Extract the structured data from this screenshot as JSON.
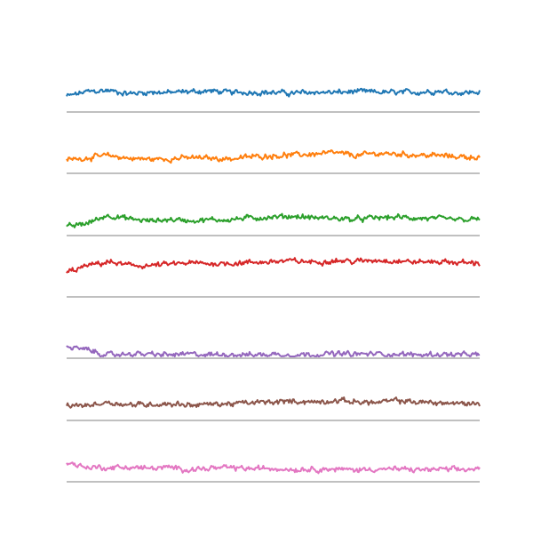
{
  "chart_data": {
    "type": "line",
    "title": "",
    "xlabel": "",
    "ylabel": "",
    "grid": false,
    "legend": "none",
    "x_range": [
      0,
      1
    ],
    "panel_y_range": [
      0,
      1
    ],
    "baseline_color": "#c0c0c0",
    "series": [
      {
        "color": "#1f77b4",
        "values": [
          0.26,
          0.35,
          0.37,
          0.31,
          0.34,
          0.33,
          0.35,
          0.36,
          0.33,
          0.34,
          0.33,
          0.32,
          0.34,
          0.33,
          0.35,
          0.34,
          0.33,
          0.34,
          0.36,
          0.33,
          0.34
        ]
      },
      {
        "color": "#ff7f0e",
        "values": [
          0.22,
          0.26,
          0.3,
          0.25,
          0.23,
          0.24,
          0.26,
          0.25,
          0.24,
          0.28,
          0.3,
          0.31,
          0.33,
          0.35,
          0.3,
          0.34,
          0.33,
          0.31,
          0.3,
          0.28,
          0.27
        ]
      },
      {
        "color": "#2ca02c",
        "values": [
          0.12,
          0.2,
          0.35,
          0.28,
          0.24,
          0.27,
          0.25,
          0.26,
          0.27,
          0.3,
          0.31,
          0.33,
          0.3,
          0.29,
          0.27,
          0.3,
          0.31,
          0.29,
          0.28,
          0.26,
          0.27
        ]
      },
      {
        "color": "#d62728",
        "values": [
          0.42,
          0.55,
          0.62,
          0.56,
          0.55,
          0.58,
          0.6,
          0.59,
          0.6,
          0.61,
          0.63,
          0.64,
          0.62,
          0.65,
          0.63,
          0.66,
          0.64,
          0.62,
          0.63,
          0.61,
          0.6
        ]
      },
      {
        "color": "#9467bd",
        "values": [
          0.18,
          0.12,
          0.02,
          0.05,
          0.04,
          0.03,
          0.04,
          0.03,
          0.04,
          0.03,
          0.04,
          0.03,
          0.04,
          0.05,
          0.04,
          0.05,
          0.04,
          0.03,
          0.04,
          0.03,
          0.03
        ]
      },
      {
        "color": "#8c564b",
        "values": [
          0.24,
          0.25,
          0.31,
          0.26,
          0.27,
          0.28,
          0.26,
          0.27,
          0.28,
          0.3,
          0.31,
          0.33,
          0.31,
          0.34,
          0.32,
          0.3,
          0.34,
          0.31,
          0.3,
          0.28,
          0.29
        ]
      },
      {
        "color": "#e377c2",
        "values": [
          0.32,
          0.24,
          0.23,
          0.24,
          0.22,
          0.23,
          0.2,
          0.22,
          0.23,
          0.21,
          0.22,
          0.2,
          0.21,
          0.2,
          0.19,
          0.21,
          0.2,
          0.19,
          0.2,
          0.19,
          0.21
        ]
      }
    ]
  }
}
